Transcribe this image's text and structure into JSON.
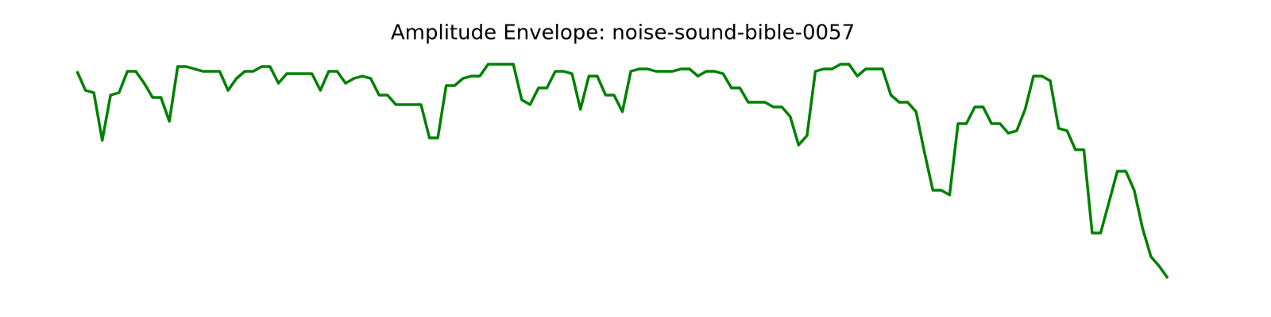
{
  "chart_data": {
    "type": "line",
    "title": "Amplitude Envelope: noise-sound-bible-0057",
    "color": "#008000",
    "ylim": [
      0,
      1
    ],
    "values": [
      0.9,
      0.82,
      0.81,
      0.61,
      0.8,
      0.81,
      0.9,
      0.9,
      0.85,
      0.79,
      0.79,
      0.69,
      0.92,
      0.92,
      0.91,
      0.9,
      0.9,
      0.9,
      0.82,
      0.87,
      0.9,
      0.9,
      0.92,
      0.92,
      0.85,
      0.89,
      0.89,
      0.89,
      0.89,
      0.82,
      0.9,
      0.9,
      0.85,
      0.87,
      0.88,
      0.87,
      0.8,
      0.8,
      0.76,
      0.76,
      0.76,
      0.76,
      0.62,
      0.62,
      0.84,
      0.84,
      0.87,
      0.88,
      0.88,
      0.93,
      0.93,
      0.93,
      0.93,
      0.78,
      0.76,
      0.83,
      0.83,
      0.9,
      0.9,
      0.89,
      0.74,
      0.88,
      0.88,
      0.8,
      0.8,
      0.73,
      0.9,
      0.91,
      0.91,
      0.9,
      0.9,
      0.9,
      0.91,
      0.91,
      0.88,
      0.9,
      0.9,
      0.89,
      0.83,
      0.83,
      0.77,
      0.77,
      0.77,
      0.75,
      0.75,
      0.71,
      0.59,
      0.63,
      0.9,
      0.91,
      0.91,
      0.93,
      0.93,
      0.88,
      0.91,
      0.91,
      0.91,
      0.8,
      0.77,
      0.77,
      0.73,
      0.56,
      0.4,
      0.4,
      0.38,
      0.68,
      0.68,
      0.75,
      0.75,
      0.68,
      0.68,
      0.64,
      0.65,
      0.74,
      0.88,
      0.88,
      0.86,
      0.66,
      0.65,
      0.57,
      0.57,
      0.22,
      0.22,
      0.35,
      0.48,
      0.48,
      0.4,
      0.24,
      0.12,
      0.08,
      0.03
    ]
  }
}
